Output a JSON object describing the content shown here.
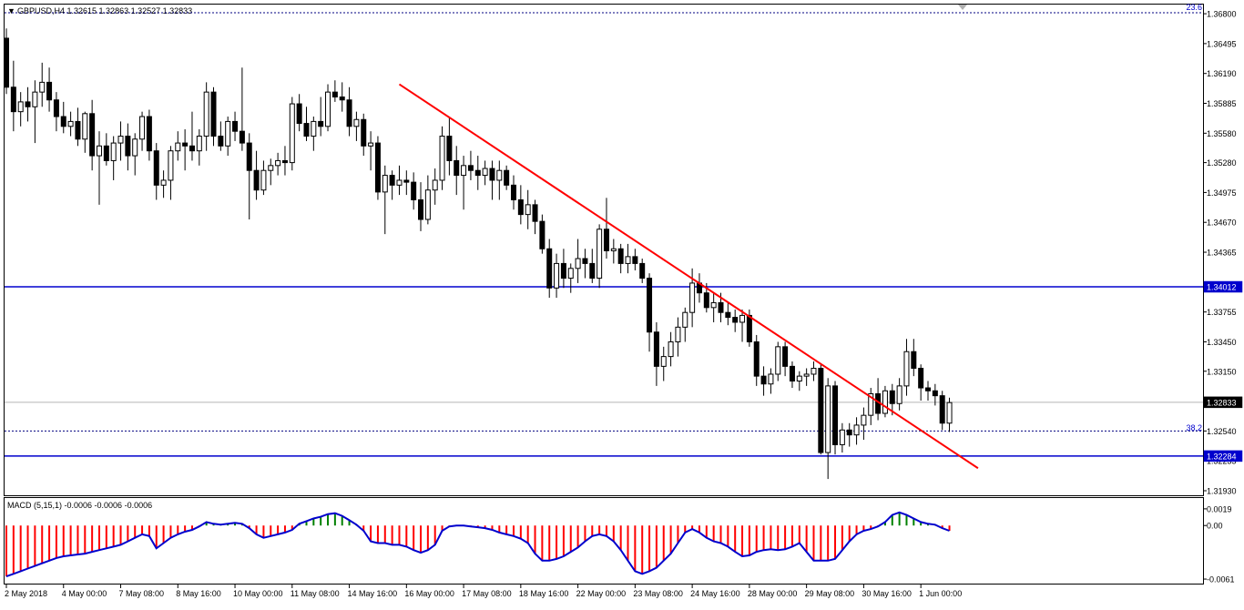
{
  "header": {
    "symbol_line": "GBPUSD,H4  1.32615 1.32863 1.32527 1.32833",
    "fib_top_label": "23.6",
    "fib_mid_label": "38.2"
  },
  "price_axis": {
    "ticks": [
      "1.36800",
      "1.36495",
      "1.36190",
      "1.35885",
      "1.35580",
      "1.35280",
      "1.34975",
      "1.34670",
      "1.34365",
      "1.33755",
      "1.33450",
      "1.33150",
      "1.32540",
      "1.32235",
      "1.31930"
    ],
    "tick_values": [
      1.368,
      1.36495,
      1.3619,
      1.35885,
      1.3558,
      1.3528,
      1.34975,
      1.3467,
      1.34365,
      1.33755,
      1.3345,
      1.3315,
      1.3254,
      1.32235,
      1.3193
    ],
    "ylim": [
      1.3193,
      1.3681
    ]
  },
  "levels": {
    "resistance_label": "1.34012",
    "resistance_value": 1.34012,
    "support_label": "1.32284",
    "support_value": 1.32284,
    "current_label": "1.32833",
    "current_value": 1.32833,
    "fib_top_value": 1.3681,
    "fib_mid_value": 1.3254
  },
  "time_axis": {
    "labels": [
      "2 May 2018",
      "4 May 00:00",
      "7 May 08:00",
      "8 May 16:00",
      "10 May 00:00",
      "11 May 08:00",
      "14 May 16:00",
      "16 May 00:00",
      "17 May 08:00",
      "18 May 16:00",
      "22 May 00:00",
      "23 May 08:00",
      "24 May 16:00",
      "28 May 00:00",
      "29 May 08:00",
      "30 May 16:00",
      "1 Jun 00:00"
    ],
    "label_bar_index": [
      0,
      8,
      16,
      24,
      32,
      40,
      48,
      56,
      64,
      72,
      80,
      88,
      96,
      104,
      112,
      120,
      128
    ]
  },
  "macd": {
    "title": "MACD (5,15,1) -0.0006 -0.0006 -0.0006",
    "axis_labels": [
      "0.0019",
      "0.00",
      "-0.0061"
    ],
    "axis_values": [
      0.0019,
      0.0,
      -0.0061
    ],
    "ylim": [
      -0.0062,
      0.0022
    ]
  },
  "colors": {
    "bull_fill": "#ffffff",
    "bear_fill": "#000000",
    "candle_outline": "#000000",
    "level_line": "#0000cd",
    "trend_line": "#ff0000",
    "macd_line": "#0000cd",
    "macd_hist_pos": "#008000",
    "macd_hist_neg": "#ff0000",
    "axis_label_bg": "#0000cd"
  },
  "chart_data": {
    "type": "candlestick",
    "timeframe": "H4",
    "symbol": "GBPUSD",
    "candles": [
      [
        1.3655,
        1.3665,
        1.3598,
        1.3605
      ],
      [
        1.3605,
        1.3632,
        1.356,
        1.358
      ],
      [
        1.358,
        1.36,
        1.3565,
        1.359
      ],
      [
        1.359,
        1.3605,
        1.357,
        1.3585
      ],
      [
        1.3585,
        1.3612,
        1.3548,
        1.36
      ],
      [
        1.36,
        1.363,
        1.3585,
        1.361
      ],
      [
        1.361,
        1.3625,
        1.358,
        1.3592
      ],
      [
        1.3592,
        1.36,
        1.356,
        1.3575
      ],
      [
        1.3575,
        1.359,
        1.3558,
        1.3565
      ],
      [
        1.3565,
        1.358,
        1.3555,
        1.357
      ],
      [
        1.357,
        1.3584,
        1.3545,
        1.3552
      ],
      [
        1.3552,
        1.358,
        1.3538,
        1.3578
      ],
      [
        1.3578,
        1.3592,
        1.352,
        1.3535
      ],
      [
        1.3535,
        1.356,
        1.3485,
        1.3545
      ],
      [
        1.3545,
        1.3558,
        1.3525,
        1.353
      ],
      [
        1.353,
        1.3555,
        1.351,
        1.3548
      ],
      [
        1.3548,
        1.357,
        1.353,
        1.3555
      ],
      [
        1.3555,
        1.3568,
        1.352,
        1.3535
      ],
      [
        1.3535,
        1.3558,
        1.3515,
        1.3552
      ],
      [
        1.3552,
        1.358,
        1.354,
        1.3575
      ],
      [
        1.3575,
        1.3582,
        1.353,
        1.354
      ],
      [
        1.354,
        1.3548,
        1.349,
        1.3505
      ],
      [
        1.3505,
        1.352,
        1.3492,
        1.351
      ],
      [
        1.351,
        1.3545,
        1.349,
        1.354
      ],
      [
        1.354,
        1.356,
        1.353,
        1.3548
      ],
      [
        1.3548,
        1.3562,
        1.352,
        1.3545
      ],
      [
        1.3545,
        1.358,
        1.353,
        1.354
      ],
      [
        1.354,
        1.3562,
        1.3525,
        1.3555
      ],
      [
        1.3555,
        1.361,
        1.354,
        1.36
      ],
      [
        1.36,
        1.3605,
        1.3545,
        1.3555
      ],
      [
        1.3555,
        1.357,
        1.354,
        1.3545
      ],
      [
        1.3545,
        1.3575,
        1.3535,
        1.357
      ],
      [
        1.357,
        1.358,
        1.355,
        1.356
      ],
      [
        1.356,
        1.3625,
        1.354,
        1.3548
      ],
      [
        1.3548,
        1.3558,
        1.347,
        1.352
      ],
      [
        1.352,
        1.354,
        1.349,
        1.35
      ],
      [
        1.35,
        1.353,
        1.3495,
        1.352
      ],
      [
        1.352,
        1.3532,
        1.3505,
        1.3525
      ],
      [
        1.3525,
        1.3538,
        1.3515,
        1.353
      ],
      [
        1.353,
        1.3545,
        1.3515,
        1.3528
      ],
      [
        1.3528,
        1.3595,
        1.352,
        1.3588
      ],
      [
        1.3588,
        1.3598,
        1.356,
        1.3568
      ],
      [
        1.3568,
        1.3585,
        1.355,
        1.3555
      ],
      [
        1.3555,
        1.3575,
        1.354,
        1.357
      ],
      [
        1.357,
        1.3595,
        1.3555,
        1.3565
      ],
      [
        1.3565,
        1.3608,
        1.356,
        1.36
      ],
      [
        1.36,
        1.3612,
        1.359,
        1.3595
      ],
      [
        1.3595,
        1.361,
        1.358,
        1.3592
      ],
      [
        1.3592,
        1.3605,
        1.3555,
        1.3565
      ],
      [
        1.3565,
        1.358,
        1.355,
        1.3572
      ],
      [
        1.3572,
        1.3578,
        1.3535,
        1.3545
      ],
      [
        1.3545,
        1.356,
        1.352,
        1.3548
      ],
      [
        1.3548,
        1.3555,
        1.349,
        1.3498
      ],
      [
        1.3498,
        1.3525,
        1.3455,
        1.3515
      ],
      [
        1.3515,
        1.352,
        1.349,
        1.3505
      ],
      [
        1.3505,
        1.3525,
        1.3495,
        1.351
      ],
      [
        1.351,
        1.352,
        1.3495,
        1.3508
      ],
      [
        1.3508,
        1.3518,
        1.348,
        1.349
      ],
      [
        1.349,
        1.3508,
        1.3458,
        1.347
      ],
      [
        1.347,
        1.3515,
        1.3465,
        1.35
      ],
      [
        1.35,
        1.3522,
        1.3485,
        1.351
      ],
      [
        1.351,
        1.3565,
        1.35,
        1.3555
      ],
      [
        1.3555,
        1.3575,
        1.3515,
        1.353
      ],
      [
        1.353,
        1.3545,
        1.3495,
        1.3515
      ],
      [
        1.3515,
        1.3535,
        1.348,
        1.3525
      ],
      [
        1.3525,
        1.354,
        1.351,
        1.352
      ],
      [
        1.352,
        1.3535,
        1.35,
        1.3515
      ],
      [
        1.3515,
        1.353,
        1.3505,
        1.3522
      ],
      [
        1.3522,
        1.353,
        1.349,
        1.351
      ],
      [
        1.351,
        1.353,
        1.349,
        1.352
      ],
      [
        1.352,
        1.3525,
        1.35,
        1.3505
      ],
      [
        1.3505,
        1.3515,
        1.348,
        1.349
      ],
      [
        1.349,
        1.3505,
        1.3465,
        1.3475
      ],
      [
        1.3475,
        1.35,
        1.346,
        1.3485
      ],
      [
        1.3485,
        1.349,
        1.3455,
        1.3468
      ],
      [
        1.3468,
        1.3475,
        1.3435,
        1.344
      ],
      [
        1.344,
        1.345,
        1.339,
        1.34
      ],
      [
        1.34,
        1.3435,
        1.339,
        1.3425
      ],
      [
        1.3425,
        1.344,
        1.34,
        1.341
      ],
      [
        1.341,
        1.3425,
        1.3395,
        1.342
      ],
      [
        1.342,
        1.345,
        1.3405,
        1.343
      ],
      [
        1.343,
        1.344,
        1.341,
        1.3425
      ],
      [
        1.3425,
        1.344,
        1.3405,
        1.341
      ],
      [
        1.341,
        1.3465,
        1.34,
        1.346
      ],
      [
        1.346,
        1.3492,
        1.343,
        1.3438
      ],
      [
        1.3438,
        1.345,
        1.3425,
        1.344
      ],
      [
        1.344,
        1.3445,
        1.3415,
        1.3425
      ],
      [
        1.3425,
        1.3445,
        1.3415,
        1.3432
      ],
      [
        1.3432,
        1.344,
        1.3418,
        1.3425
      ],
      [
        1.3425,
        1.343,
        1.3405,
        1.341
      ],
      [
        1.341,
        1.3415,
        1.3335,
        1.3355
      ],
      [
        1.3355,
        1.3365,
        1.33,
        1.332
      ],
      [
        1.332,
        1.334,
        1.3305,
        1.333
      ],
      [
        1.333,
        1.3355,
        1.332,
        1.3345
      ],
      [
        1.3345,
        1.337,
        1.333,
        1.336
      ],
      [
        1.336,
        1.338,
        1.3345,
        1.3375
      ],
      [
        1.3375,
        1.342,
        1.336,
        1.3405
      ],
      [
        1.3405,
        1.3415,
        1.3385,
        1.3395
      ],
      [
        1.3395,
        1.3405,
        1.3375,
        1.338
      ],
      [
        1.338,
        1.3395,
        1.3365,
        1.3385
      ],
      [
        1.3385,
        1.3395,
        1.3365,
        1.3375
      ],
      [
        1.3375,
        1.3385,
        1.3362,
        1.337
      ],
      [
        1.337,
        1.3378,
        1.3355,
        1.3365
      ],
      [
        1.3365,
        1.3378,
        1.3345,
        1.3372
      ],
      [
        1.3372,
        1.3378,
        1.334,
        1.3345
      ],
      [
        1.3345,
        1.3352,
        1.33,
        1.331
      ],
      [
        1.331,
        1.332,
        1.329,
        1.3302
      ],
      [
        1.3302,
        1.3318,
        1.3292,
        1.3312
      ],
      [
        1.3312,
        1.3345,
        1.3305,
        1.334
      ],
      [
        1.334,
        1.3345,
        1.331,
        1.332
      ],
      [
        1.332,
        1.3325,
        1.3298,
        1.3305
      ],
      [
        1.3305,
        1.3315,
        1.3295,
        1.331
      ],
      [
        1.331,
        1.3318,
        1.33,
        1.3312
      ],
      [
        1.3312,
        1.3325,
        1.3305,
        1.3318
      ],
      [
        1.3318,
        1.3322,
        1.323,
        1.3232
      ],
      [
        1.3232,
        1.3308,
        1.3205,
        1.33
      ],
      [
        1.33,
        1.3305,
        1.323,
        1.324
      ],
      [
        1.324,
        1.3262,
        1.3232,
        1.3255
      ],
      [
        1.3255,
        1.3262,
        1.3238,
        1.325
      ],
      [
        1.325,
        1.3268,
        1.324,
        1.326
      ],
      [
        1.326,
        1.3278,
        1.3245,
        1.327
      ],
      [
        1.327,
        1.3298,
        1.326,
        1.3292
      ],
      [
        1.3292,
        1.3308,
        1.3265,
        1.3272
      ],
      [
        1.3272,
        1.33,
        1.3268,
        1.3295
      ],
      [
        1.3295,
        1.3302,
        1.327,
        1.3282
      ],
      [
        1.3282,
        1.3308,
        1.3275,
        1.33
      ],
      [
        1.33,
        1.3348,
        1.329,
        1.3335
      ],
      [
        1.3335,
        1.3348,
        1.331,
        1.3318
      ],
      [
        1.3318,
        1.3322,
        1.3285,
        1.3298
      ],
      [
        1.3298,
        1.3305,
        1.3285,
        1.3295
      ],
      [
        1.3295,
        1.3302,
        1.328,
        1.329
      ],
      [
        1.329,
        1.3295,
        1.3255,
        1.3262
      ],
      [
        1.3262,
        1.3288,
        1.3253,
        1.3283
      ]
    ],
    "trendline": [
      [
        1.3608,
        55
      ],
      [
        1.3216,
        136
      ]
    ],
    "macd_hist": [
      -0.0058,
      -0.0055,
      -0.0052,
      -0.0049,
      -0.0046,
      -0.0043,
      -0.004,
      -0.0037,
      -0.0035,
      -0.0034,
      -0.0033,
      -0.0032,
      -0.003,
      -0.0028,
      -0.0026,
      -0.0024,
      -0.0022,
      -0.0018,
      -0.0014,
      -0.001,
      -0.0012,
      -0.0026,
      -0.002,
      -0.0014,
      -0.001,
      -0.0007,
      -0.0005,
      -0.0001,
      0.0004,
      0.0002,
      0.0001,
      0.0002,
      0.0003,
      0.0002,
      -0.0003,
      -0.001,
      -0.0014,
      -0.0012,
      -0.001,
      -0.0008,
      -0.0005,
      0.0002,
      0.0005,
      0.0008,
      0.001,
      0.0013,
      0.0014,
      0.0011,
      0.0006,
      0.0001,
      -0.0006,
      -0.0018,
      -0.002,
      -0.002,
      -0.0022,
      -0.0022,
      -0.0024,
      -0.0028,
      -0.0031,
      -0.0028,
      -0.0022,
      -0.0006,
      -0.0001,
      0.0,
      0.0,
      -0.0001,
      -0.0002,
      -0.0003,
      -0.0005,
      -0.0008,
      -0.001,
      -0.0012,
      -0.0015,
      -0.002,
      -0.0032,
      -0.004,
      -0.004,
      -0.0038,
      -0.0035,
      -0.003,
      -0.0025,
      -0.0018,
      -0.0012,
      -0.001,
      -0.0012,
      -0.0018,
      -0.0028,
      -0.004,
      -0.0052,
      -0.0055,
      -0.0052,
      -0.0048,
      -0.004,
      -0.0032,
      -0.002,
      -0.0008,
      -0.0004,
      -0.0008,
      -0.0014,
      -0.0018,
      -0.002,
      -0.0024,
      -0.003,
      -0.0035,
      -0.0034,
      -0.003,
      -0.0028,
      -0.0027,
      -0.0028,
      -0.0027,
      -0.0024,
      -0.002,
      -0.003,
      -0.004,
      -0.004,
      -0.004,
      -0.0038,
      -0.0028,
      -0.0018,
      -0.001,
      -0.0006,
      -0.0004,
      -0.0001,
      0.0004,
      0.0012,
      0.0015,
      0.0012,
      0.0008,
      0.0004,
      0.0002,
      0.0001,
      -0.0003,
      -0.0006
    ],
    "ylim": [
      1.3193,
      1.3681
    ]
  }
}
